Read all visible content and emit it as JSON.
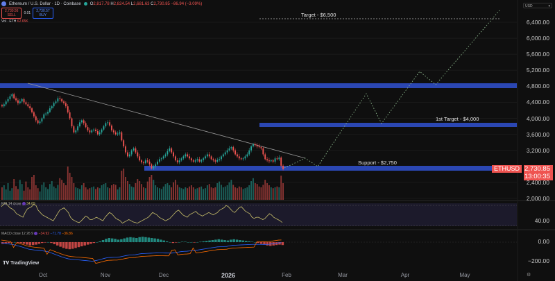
{
  "header": {
    "symbol_title": "Ethereum / U.S. Dollar · 1D · Coinbase",
    "open_label": "O",
    "open": "2,817.78",
    "high_label": "H",
    "high": "2,824.54",
    "low_label": "L",
    "low": "2,681.63",
    "close_label": "C",
    "close": "2,730.85",
    "change": "−86.94 (−3.09%)"
  },
  "trade": {
    "sell_price": "2,730.56",
    "sell_label": "SELL",
    "spread": "0.01",
    "buy_price": "2,730.57",
    "buy_label": "BUY"
  },
  "volume_legend": {
    "label": "Vol · ETH",
    "value": "62.65K"
  },
  "currency_selector": "USD",
  "price_axis": {
    "ticks": [
      "6,400.00",
      "6,000.00",
      "5,600.00",
      "5,200.00",
      "4,800.00",
      "4,400.00",
      "4,000.00",
      "3,600.00",
      "3,200.00",
      "2,400.00",
      "2,000.00"
    ]
  },
  "last_price": {
    "symbol": "ETHUSD",
    "price": "2,730.85",
    "countdown": "13:00:35"
  },
  "annotations": {
    "target": "Target - $6,500",
    "first_target": "1st Target - $4,000",
    "support": "Support - $2,750"
  },
  "rsi": {
    "label": "RSI 14 close",
    "value": "34.69",
    "axis_tick": "40.00"
  },
  "macd": {
    "label": "MACD close 12 26 9",
    "hist": "−34.92",
    "macd": "−71.78",
    "signal": "−36.86",
    "axis_ticks": [
      "0.00",
      "−200.00"
    ]
  },
  "time_axis": [
    "Oct",
    "Nov",
    "Dec",
    "2026",
    "Feb",
    "Mar",
    "Apr",
    "May"
  ],
  "branding": "TradingView",
  "colors": {
    "up": "#26a69a",
    "down": "#ef5350",
    "zone": "#2b47b3",
    "rsi": "#c9c06a",
    "macd": "#2962ff",
    "signal": "#ff6d00",
    "background": "#0f0f0f"
  },
  "chart_data": {
    "type": "candlestick",
    "title": "Ethereum / U.S. Dollar · 1D · Coinbase",
    "ylabel": "USD",
    "ylim": [
      1900,
      6700
    ],
    "x_ticks": [
      "Oct",
      "Nov",
      "Dec",
      "2026",
      "Feb",
      "Mar",
      "Apr",
      "May"
    ],
    "closes": [
      4300,
      4350,
      4420,
      4480,
      4550,
      4600,
      4500,
      4450,
      4380,
      4420,
      4480,
      4400,
      4350,
      4300,
      4250,
      4150,
      4050,
      3950,
      3880,
      3920,
      4000,
      4100,
      4120,
      4160,
      4250,
      4300,
      4380,
      4420,
      4500,
      4480,
      4420,
      4380,
      4300,
      4150,
      4000,
      3800,
      3650,
      3700,
      3800,
      3900,
      3950,
      3880,
      3780,
      3700,
      3650,
      3700,
      3720,
      3680,
      3600,
      3650,
      3720,
      3800,
      3880,
      3900,
      3820,
      3700,
      3650,
      3600,
      3620,
      3650,
      3450,
      3300,
      3150,
      3050,
      3100,
      3200,
      3250,
      3150,
      3050,
      2950,
      2900,
      2880,
      2950,
      2920,
      2850,
      2750,
      2800,
      2850,
      2920,
      2980,
      3000,
      3050,
      3100,
      3180,
      3250,
      3150,
      3050,
      2950,
      2900,
      2950,
      3000,
      3050,
      3100,
      3050,
      3000,
      2950,
      2920,
      2950,
      2980,
      2920,
      2960,
      3000,
      3050,
      3100,
      3050,
      2980,
      2950,
      2920,
      2960,
      2980,
      3050,
      3100,
      3150,
      3200,
      3250,
      3280,
      3200,
      3100,
      3050,
      3000,
      2980,
      3000,
      3050,
      3100,
      3200,
      3300,
      3350,
      3330,
      3300,
      3280,
      3250,
      3100,
      2980,
      2950,
      2930,
      2950,
      2920,
      3000,
      2980,
      3020,
      2817,
      2730
    ],
    "volume": [
      30,
      35,
      25,
      40,
      22,
      28,
      50,
      33,
      26,
      48,
      38,
      22,
      44,
      30,
      25,
      55,
      60,
      35,
      28,
      20,
      36,
      42,
      30,
      26,
      38,
      45,
      32,
      28,
      36,
      52,
      48,
      40,
      35,
      80,
      65,
      55,
      40,
      30,
      28,
      26,
      35,
      40,
      30,
      25,
      28,
      30,
      32,
      26,
      30,
      28,
      35,
      38,
      40,
      30,
      28,
      35,
      38,
      36,
      25,
      30,
      70,
      75,
      55,
      45,
      38,
      32,
      30,
      40,
      50,
      45,
      38,
      30,
      28,
      44,
      55,
      60,
      48,
      35,
      30,
      28,
      26,
      32,
      38,
      40,
      35,
      30,
      42,
      48,
      36,
      30,
      28,
      26,
      30,
      28,
      32,
      35,
      30,
      26,
      28,
      30,
      32,
      26,
      28,
      35,
      38,
      30,
      28,
      30,
      40,
      44,
      36,
      30,
      32,
      35,
      42,
      48,
      36,
      30,
      28,
      32,
      30,
      26,
      28,
      30,
      35,
      45,
      52,
      40,
      38,
      32,
      30,
      36,
      48,
      40,
      35,
      30,
      28,
      30,
      32,
      30,
      58,
      40
    ],
    "rsi": [
      62,
      66,
      68,
      64,
      60,
      58,
      55,
      50,
      48,
      46,
      44,
      52,
      58,
      60,
      62,
      66,
      64,
      56,
      52,
      48,
      46,
      44,
      42,
      40,
      38,
      44,
      50,
      56,
      58,
      60,
      56,
      52,
      44,
      40,
      38,
      36,
      35,
      38,
      42,
      46,
      44,
      40,
      40,
      42,
      44,
      42,
      40,
      38,
      44,
      48,
      52,
      50,
      46,
      42,
      40,
      38,
      34,
      36,
      38,
      40,
      38,
      36,
      35,
      34,
      36,
      38,
      40,
      42,
      44,
      48,
      52,
      50,
      48,
      44,
      42,
      40,
      38,
      40,
      42,
      46,
      50,
      54,
      56,
      52,
      48,
      46,
      44,
      48,
      50,
      52,
      54,
      50,
      48,
      46,
      48,
      50,
      52,
      50,
      48,
      50,
      52,
      56,
      58,
      60,
      64,
      62,
      58,
      54,
      52,
      56,
      60,
      62,
      58,
      54,
      52,
      50,
      44,
      42,
      44,
      44,
      42,
      40,
      42,
      46,
      50,
      48,
      44,
      42,
      40,
      38,
      35
    ],
    "macd_hist": [
      -20,
      -15,
      -10,
      -5,
      0,
      -8,
      -12,
      -20,
      -30,
      -40,
      -35,
      -30,
      -20,
      -10,
      -5,
      0,
      -10,
      -25,
      -40,
      -55,
      -70,
      -80,
      -85,
      -80,
      -70,
      -60,
      -50,
      -40,
      -30,
      -20,
      -10,
      0,
      10,
      25,
      40,
      50,
      45,
      40,
      30,
      35,
      45,
      55,
      60,
      55,
      50,
      60,
      65,
      60,
      55,
      50,
      45,
      40,
      30,
      20,
      10,
      0,
      -10,
      -5,
      0,
      5,
      5,
      0,
      0,
      -5,
      0,
      5,
      10,
      15,
      20,
      25,
      30,
      35,
      30,
      25,
      20,
      30,
      35,
      30,
      25,
      20,
      15,
      10,
      5,
      0,
      -10,
      -20,
      -30,
      -40,
      -45,
      -40,
      -35,
      -30,
      -35
    ]
  }
}
